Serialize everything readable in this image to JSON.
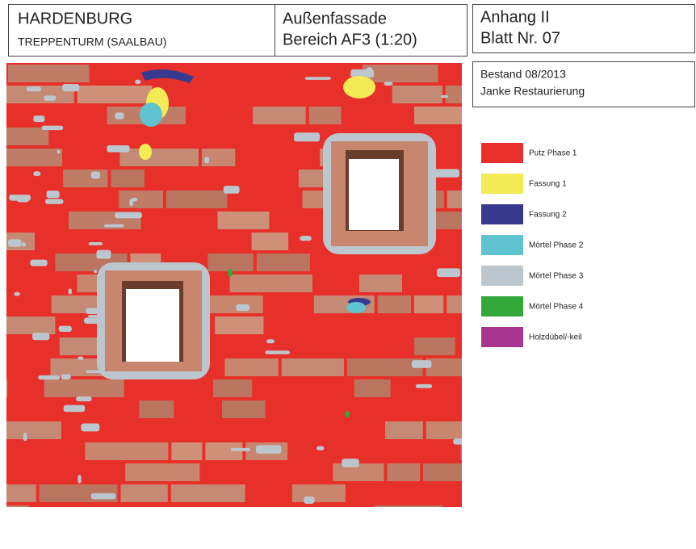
{
  "header": {
    "title": "HARDENBURG",
    "subtitle": "TREPPENTURM (SAALBAU)",
    "section": "Außenfassade",
    "area": "Bereich AF3 (1:20)",
    "appendix": "Anhang II",
    "sheet": "Blatt Nr. 07"
  },
  "info": {
    "status": "Bestand 08/2013",
    "author": "Janke Restaurierung"
  },
  "legend": [
    {
      "label": "Putz Phase 1",
      "color": "#e8302b"
    },
    {
      "label": "Fassung 1",
      "color": "#f4ea55"
    },
    {
      "label": "Fassung 2",
      "color": "#373a8f"
    },
    {
      "label": "Mörtel Phase 2",
      "color": "#5fc4d0"
    },
    {
      "label": "Mörtel Phase 3",
      "color": "#bcc6cf"
    },
    {
      "label": "Mörtel Phase 4",
      "color": "#33a838"
    },
    {
      "label": "Holzdübel/-keil",
      "color": "#a8358f"
    }
  ]
}
